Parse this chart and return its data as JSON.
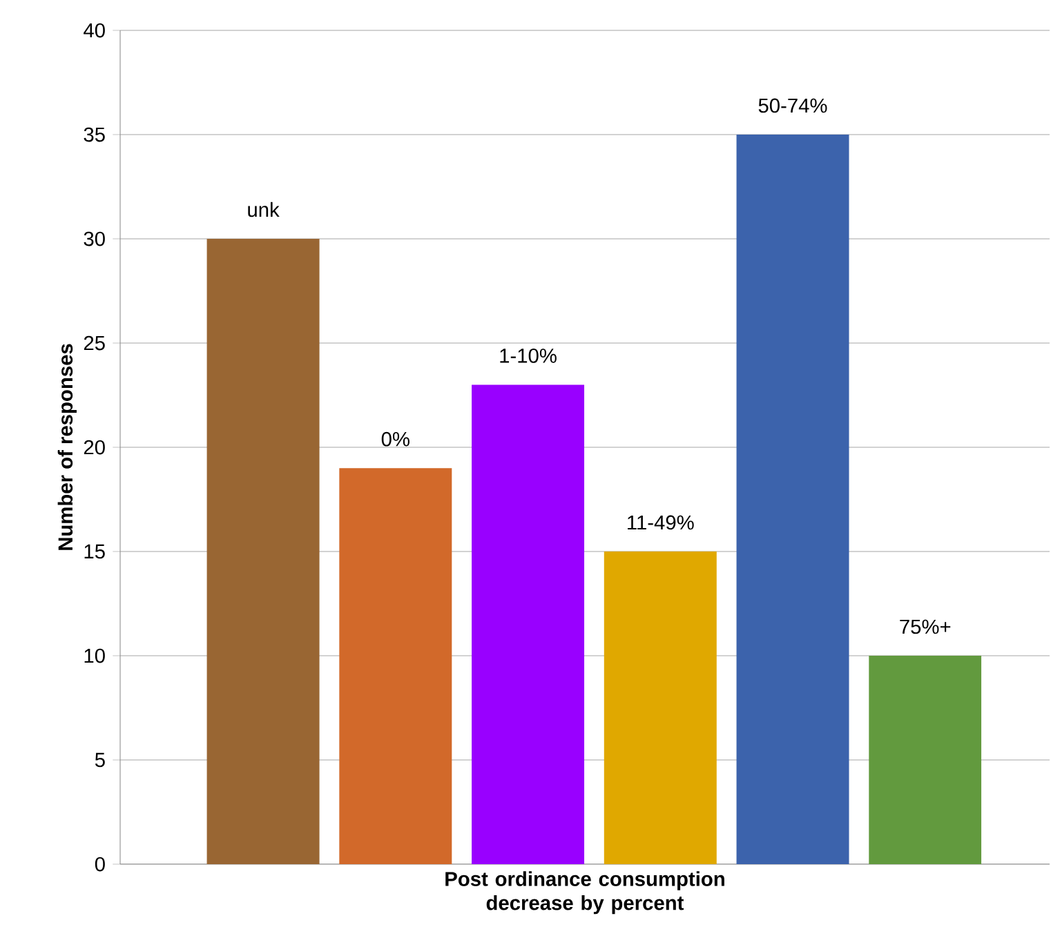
{
  "chart_data": {
    "type": "bar",
    "xlabel": "Post ordinance consumption decrease by percent",
    "ylabel": "Number of responses",
    "categories": [
      "unk",
      "0%",
      "1-10%",
      "11-49%",
      "50-74%",
      "75%+"
    ],
    "values": [
      30,
      19,
      23,
      15,
      35,
      10
    ],
    "colors": [
      "#996633",
      "#d2692a",
      "#9900ff",
      "#e0a800",
      "#3c63ac",
      "#629a3e"
    ],
    "ylim": [
      0,
      40
    ],
    "yticks": [
      0,
      5,
      10,
      15,
      20,
      25,
      30,
      35,
      40
    ],
    "grid": "y"
  }
}
